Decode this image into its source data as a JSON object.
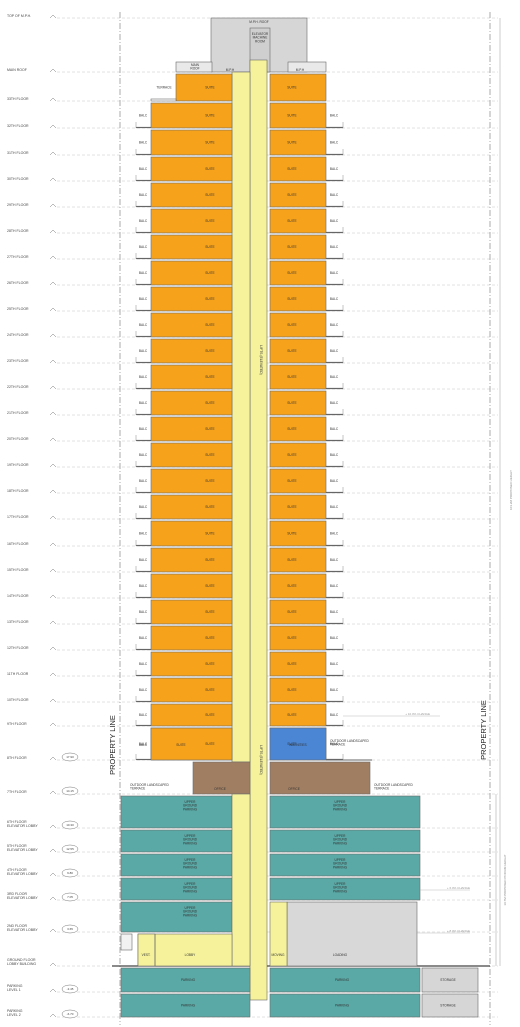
{
  "title": "",
  "colors": {
    "suite": "#f7a21b",
    "parking": "#5aa9a6",
    "service": "#f5f29b",
    "amenity": "#a07e62",
    "amenity_room": "#4a86d4",
    "loading": "#d8d8d8",
    "mech": "#d6d6d6"
  },
  "levels": [
    "TOP OF M.P.H.",
    "MAIN ROOF",
    "33TH FLOOR",
    "32TH FLOOR",
    "31TH FLOOR",
    "30TH FLOOR",
    "29TH FLOOR",
    "28TH FLOOR",
    "27TH FLOOR",
    "26TH FLOOR",
    "25TH FLOOR",
    "24TH FLOOR",
    "23TH FLOOR",
    "22TH FLOOR",
    "21TH FLOOR",
    "20TH FLOOR",
    "19TH FLOOR",
    "18TH FLOOR",
    "17TH FLOOR",
    "16TH FLOOR",
    "15TH FLOOR",
    "14TH FLOOR",
    "13TH FLOOR",
    "12TH FLOOR",
    "11TH FLOOR",
    "10TH FLOOR",
    "9TH FLOOR",
    "8TH FLOOR",
    "7TH FLOOR",
    "6TH FLOOR ELEVATOR LOBBY",
    "5TH FLOOR ELEVATOR LOBBY",
    "4TH FLOOR ELEVATOR LOBBY",
    "3RD FLOOR ELEVATOR LOBBY",
    "2ND FLOOR ELEVATOR LOBBY",
    "GROUND FLOOR LOBBY BUILDING",
    "PARKING LEVEL 1",
    "PARKING LEVEL 2"
  ],
  "circles": [
    "17.90",
    "14.15",
    "10.30",
    "12.55",
    "9.80",
    "7.05",
    "3.65",
    "-3.45",
    "-6.70"
  ],
  "labels": {
    "property_line": "PROPERTY LINE",
    "suite": "SUITE",
    "balc": "BALC",
    "terrace": "TERRACE",
    "mph_roof": "M.P.H. ROOF",
    "elevator_room": "ELEVATOR MACHINE ROOM",
    "main_roof": "MAIN ROOF",
    "mph": "M.P.H",
    "lifts": "LIFTS (ELEVATED)",
    "amenity_room": "AMENITIES",
    "outdoor_terrace": "OUTDOOR LANDSCAPED TERRACE",
    "office": "OFFICE",
    "upper_parking": "UPPER GROUND PARKING",
    "parking": "PARKING",
    "storage": "STORAGE",
    "vest": "VEST.",
    "lobby": "LOBBY",
    "moving": "MOVING",
    "loading": "LOADING",
    "height_note": "103.2M PROPOSED HEIGHT",
    "podium_note": "19.7M PROPOSED PODIUM HEIGHT",
    "setback1": "+ 10.0% CHANGE",
    "setback2": "+ 6.0% CHANGE",
    "setback3": "+ 8.0% CHANGE"
  }
}
